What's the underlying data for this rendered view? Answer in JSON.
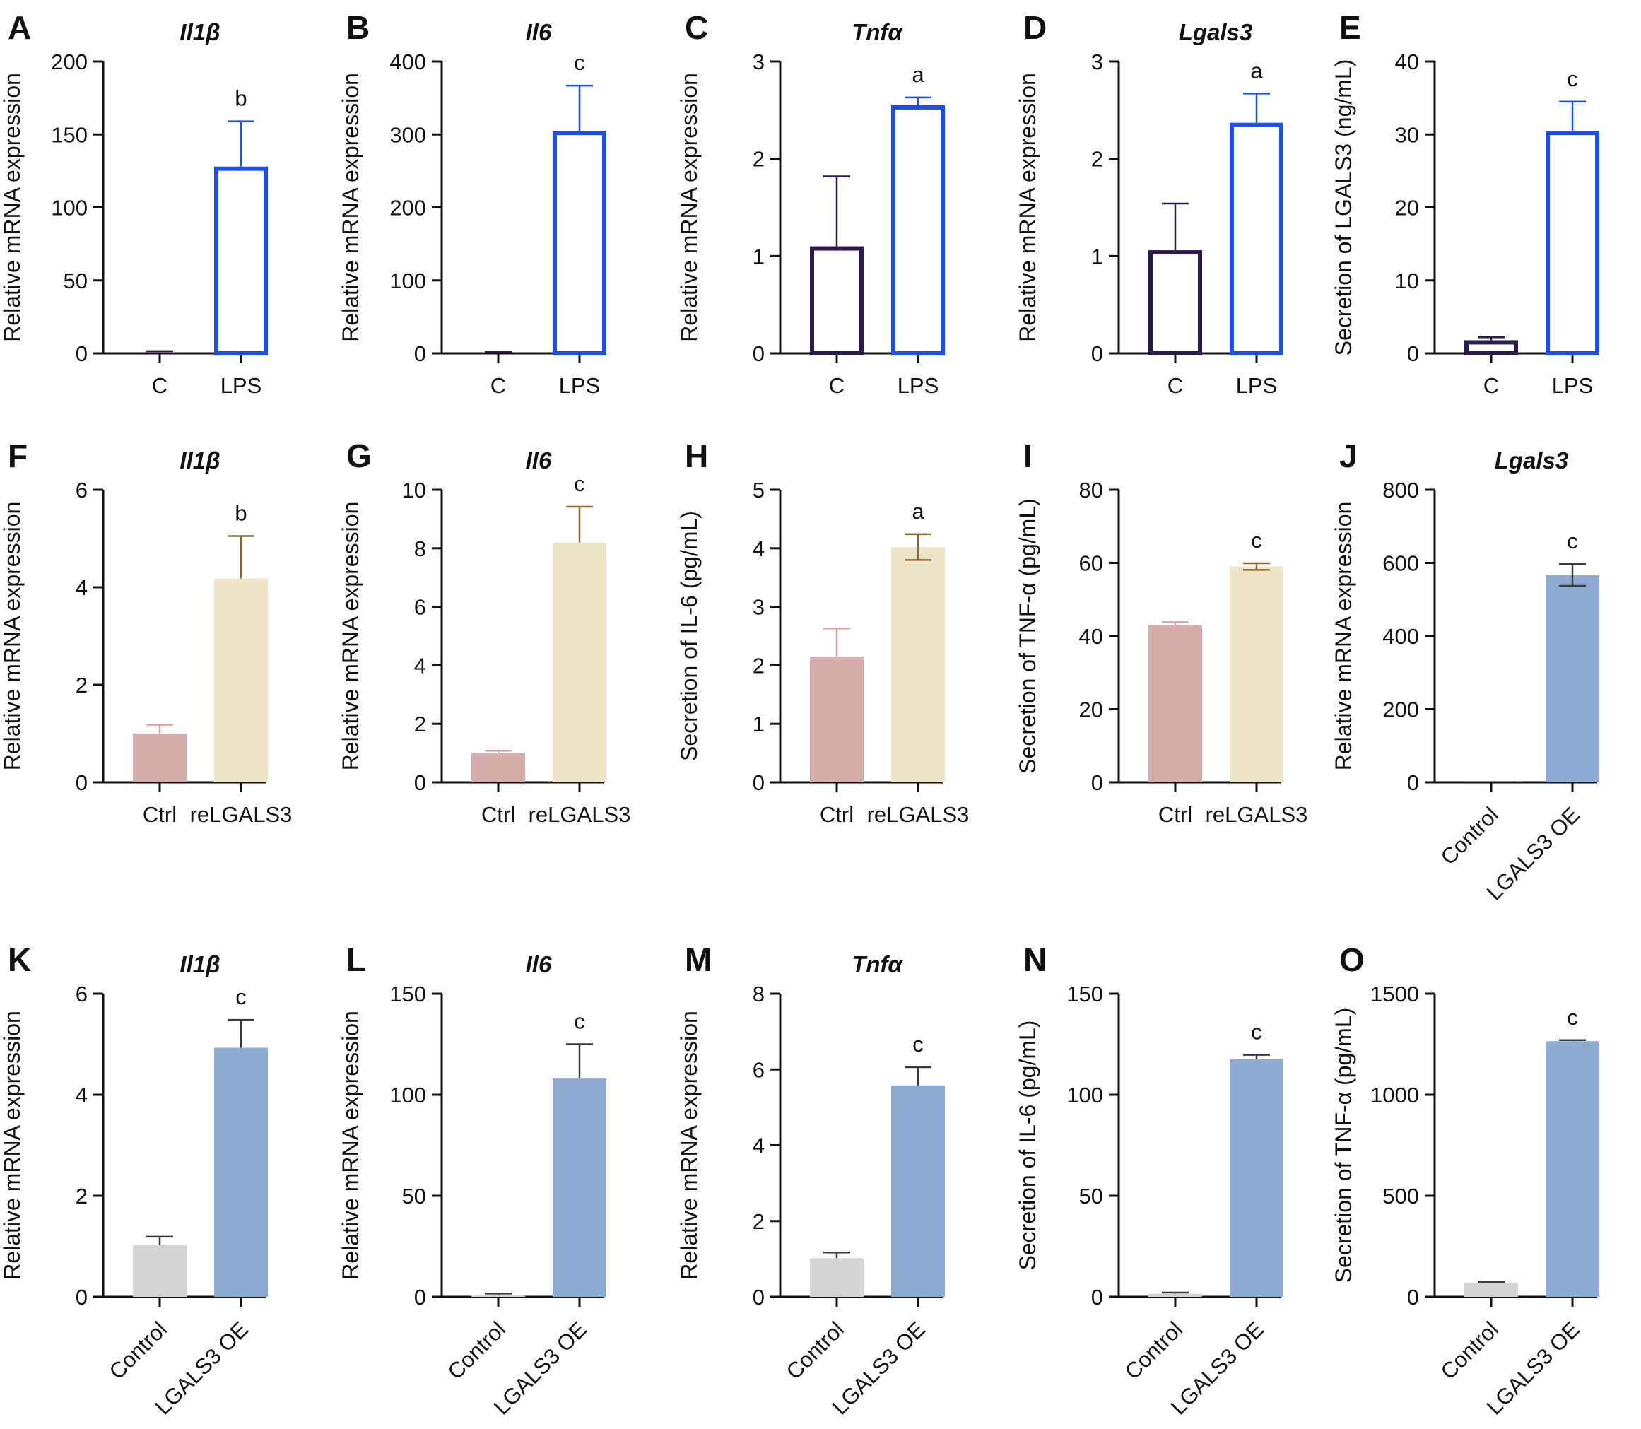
{
  "colors": {
    "axis": "#111111",
    "lps_outline": "#1f4fe0",
    "c_outline": "#2a1a4d",
    "ctrl_fill": "#d6afad",
    "ctrl_err": "#d9a3a3",
    "re_fill": "#ece5c7",
    "re_err": "#8a6a2e",
    "oe_fill": "#8dabd3",
    "oe_err": "#3a3a3a",
    "control_fill": "#d4d4d4",
    "control_err": "#3a3a3a"
  },
  "chart_data": [
    {
      "type": "bar",
      "panel": "A",
      "title": "Il1β",
      "ylabel": "Relative mRNA expression",
      "ylim": [
        0,
        200
      ],
      "yticks": [
        0,
        50,
        100,
        150,
        200
      ],
      "categories": [
        "C",
        "LPS"
      ],
      "values": [
        1,
        128
      ],
      "errors": [
        0.5,
        31
      ],
      "significance": [
        "",
        "b"
      ],
      "style": [
        "c_outline",
        "lps_outline"
      ],
      "rotated_labels": false
    },
    {
      "type": "bar",
      "panel": "B",
      "title": "Il6",
      "ylabel": "Relative mRNA expression",
      "ylim": [
        0,
        400
      ],
      "yticks": [
        0,
        100,
        200,
        300,
        400
      ],
      "categories": [
        "C",
        "LPS"
      ],
      "values": [
        1,
        305
      ],
      "errors": [
        1,
        62
      ],
      "significance": [
        "",
        "c"
      ],
      "style": [
        "c_outline",
        "lps_outline"
      ],
      "rotated_labels": false
    },
    {
      "type": "bar",
      "panel": "C",
      "title": "Tnfα",
      "ylabel": "Relative mRNA expression",
      "ylim": [
        0,
        3
      ],
      "yticks": [
        0,
        1,
        2,
        3
      ],
      "categories": [
        "C",
        "LPS"
      ],
      "values": [
        1.1,
        2.55
      ],
      "errors": [
        0.72,
        0.08
      ],
      "significance": [
        "",
        "a"
      ],
      "style": [
        "c_outline",
        "lps_outline"
      ],
      "rotated_labels": false
    },
    {
      "type": "bar",
      "panel": "D",
      "title": "Lgals3",
      "ylabel": "Relative mRNA expression",
      "ylim": [
        0,
        3
      ],
      "yticks": [
        0,
        1,
        2,
        3
      ],
      "categories": [
        "C",
        "LPS"
      ],
      "values": [
        1.06,
        2.37
      ],
      "errors": [
        0.48,
        0.3
      ],
      "significance": [
        "",
        "a"
      ],
      "style": [
        "c_outline",
        "lps_outline"
      ],
      "rotated_labels": false
    },
    {
      "type": "bar",
      "panel": "E",
      "title": "",
      "ylabel": "Secretion of LGALS3 (ng/mL)",
      "ylim": [
        0,
        40
      ],
      "yticks": [
        0,
        10,
        20,
        30,
        40
      ],
      "categories": [
        "C",
        "LPS"
      ],
      "values": [
        1.8,
        30.5
      ],
      "errors": [
        0.4,
        4
      ],
      "significance": [
        "",
        "c"
      ],
      "style": [
        "c_outline",
        "lps_outline"
      ],
      "rotated_labels": false
    },
    {
      "type": "bar",
      "panel": "F",
      "title": "Il1β",
      "ylabel": "Relative mRNA expression",
      "ylim": [
        0,
        6
      ],
      "yticks": [
        0,
        2,
        4,
        6
      ],
      "categories": [
        "Ctrl",
        "reLGALS3"
      ],
      "values": [
        1,
        4.18
      ],
      "errors": [
        0.18,
        0.87
      ],
      "significance": [
        "",
        "b"
      ],
      "style": [
        "ctrl",
        "re"
      ],
      "rotated_labels": false
    },
    {
      "type": "bar",
      "panel": "G",
      "title": "Il6",
      "ylabel": "Relative mRNA expression",
      "ylim": [
        0,
        10
      ],
      "yticks": [
        0,
        2,
        4,
        6,
        8,
        10
      ],
      "categories": [
        "Ctrl",
        "reLGALS3"
      ],
      "values": [
        1,
        8.2
      ],
      "errors": [
        0.08,
        1.22
      ],
      "significance": [
        "",
        "c"
      ],
      "style": [
        "ctrl",
        "re"
      ],
      "rotated_labels": false
    },
    {
      "type": "bar",
      "panel": "H",
      "title": "",
      "ylabel": "Secretion of IL-6 (pg/mL)",
      "ylim": [
        0,
        5
      ],
      "yticks": [
        0,
        1,
        2,
        3,
        4,
        5
      ],
      "categories": [
        "Ctrl",
        "reLGALS3"
      ],
      "values": [
        2.15,
        4.02
      ],
      "errors": [
        0.48,
        0.22
      ],
      "significance": [
        "",
        "a"
      ],
      "style": [
        "ctrl",
        "re"
      ],
      "rotated_labels": false
    },
    {
      "type": "bar",
      "panel": "I",
      "title": "",
      "ylabel": "Secretion of TNF-α (pg/mL)",
      "ylim": [
        0,
        80
      ],
      "yticks": [
        0,
        20,
        40,
        60,
        80
      ],
      "categories": [
        "Ctrl",
        "reLGALS3"
      ],
      "values": [
        43,
        59
      ],
      "errors": [
        0.8,
        0.9
      ],
      "significance": [
        "",
        "c"
      ],
      "style": [
        "ctrl",
        "re"
      ],
      "rotated_labels": false
    },
    {
      "type": "bar",
      "panel": "J",
      "title": "Lgals3",
      "ylabel": "Relative mRNA expression",
      "ylim": [
        0,
        800
      ],
      "yticks": [
        0,
        200,
        400,
        600,
        800
      ],
      "categories": [
        "Control",
        "LGALS3 OE"
      ],
      "values": [
        1,
        567
      ],
      "errors": [
        0,
        30
      ],
      "significance": [
        "",
        "c"
      ],
      "style": [
        "control",
        "oe"
      ],
      "rotated_labels": true
    },
    {
      "type": "bar",
      "panel": "K",
      "title": "Il1β",
      "ylabel": "Relative mRNA expression",
      "ylim": [
        0,
        6
      ],
      "yticks": [
        0,
        2,
        4,
        6
      ],
      "categories": [
        "Control",
        "LGALS3 OE"
      ],
      "values": [
        1.02,
        4.93
      ],
      "errors": [
        0.17,
        0.55
      ],
      "significance": [
        "",
        "c"
      ],
      "style": [
        "control",
        "oe"
      ],
      "rotated_labels": true
    },
    {
      "type": "bar",
      "panel": "L",
      "title": "Il6",
      "ylabel": "Relative mRNA expression",
      "ylim": [
        0,
        150
      ],
      "yticks": [
        0,
        50,
        100,
        150
      ],
      "categories": [
        "Control",
        "LGALS3 OE"
      ],
      "values": [
        1,
        108
      ],
      "errors": [
        0.6,
        17
      ],
      "significance": [
        "",
        "c"
      ],
      "style": [
        "control",
        "oe"
      ],
      "rotated_labels": true
    },
    {
      "type": "bar",
      "panel": "M",
      "title": "Tnfα",
      "ylabel": "Relative mRNA expression",
      "ylim": [
        0,
        8
      ],
      "yticks": [
        0,
        2,
        4,
        6,
        8
      ],
      "categories": [
        "Control",
        "LGALS3 OE"
      ],
      "values": [
        1.02,
        5.58
      ],
      "errors": [
        0.15,
        0.48
      ],
      "significance": [
        "",
        "c"
      ],
      "style": [
        "control",
        "oe"
      ],
      "rotated_labels": true
    },
    {
      "type": "bar",
      "panel": "N",
      "title": "",
      "ylabel": "Secretion of IL-6 (pg/mL)",
      "ylim": [
        0,
        150
      ],
      "yticks": [
        0,
        50,
        100,
        150
      ],
      "categories": [
        "Control",
        "LGALS3 OE"
      ],
      "values": [
        1.5,
        117.5
      ],
      "errors": [
        0.6,
        2.2
      ],
      "significance": [
        "",
        "c"
      ],
      "style": [
        "control",
        "oe"
      ],
      "rotated_labels": true
    },
    {
      "type": "bar",
      "panel": "O",
      "title": "",
      "ylabel": "Secretion of TNF-α (pg/mL)",
      "ylim": [
        0,
        1500
      ],
      "yticks": [
        0,
        500,
        1000,
        1500
      ],
      "categories": [
        "Control",
        "LGALS3 OE"
      ],
      "values": [
        70,
        1265
      ],
      "errors": [
        4,
        5
      ],
      "significance": [
        "",
        "c"
      ],
      "style": [
        "control",
        "oe"
      ],
      "rotated_labels": true
    }
  ]
}
